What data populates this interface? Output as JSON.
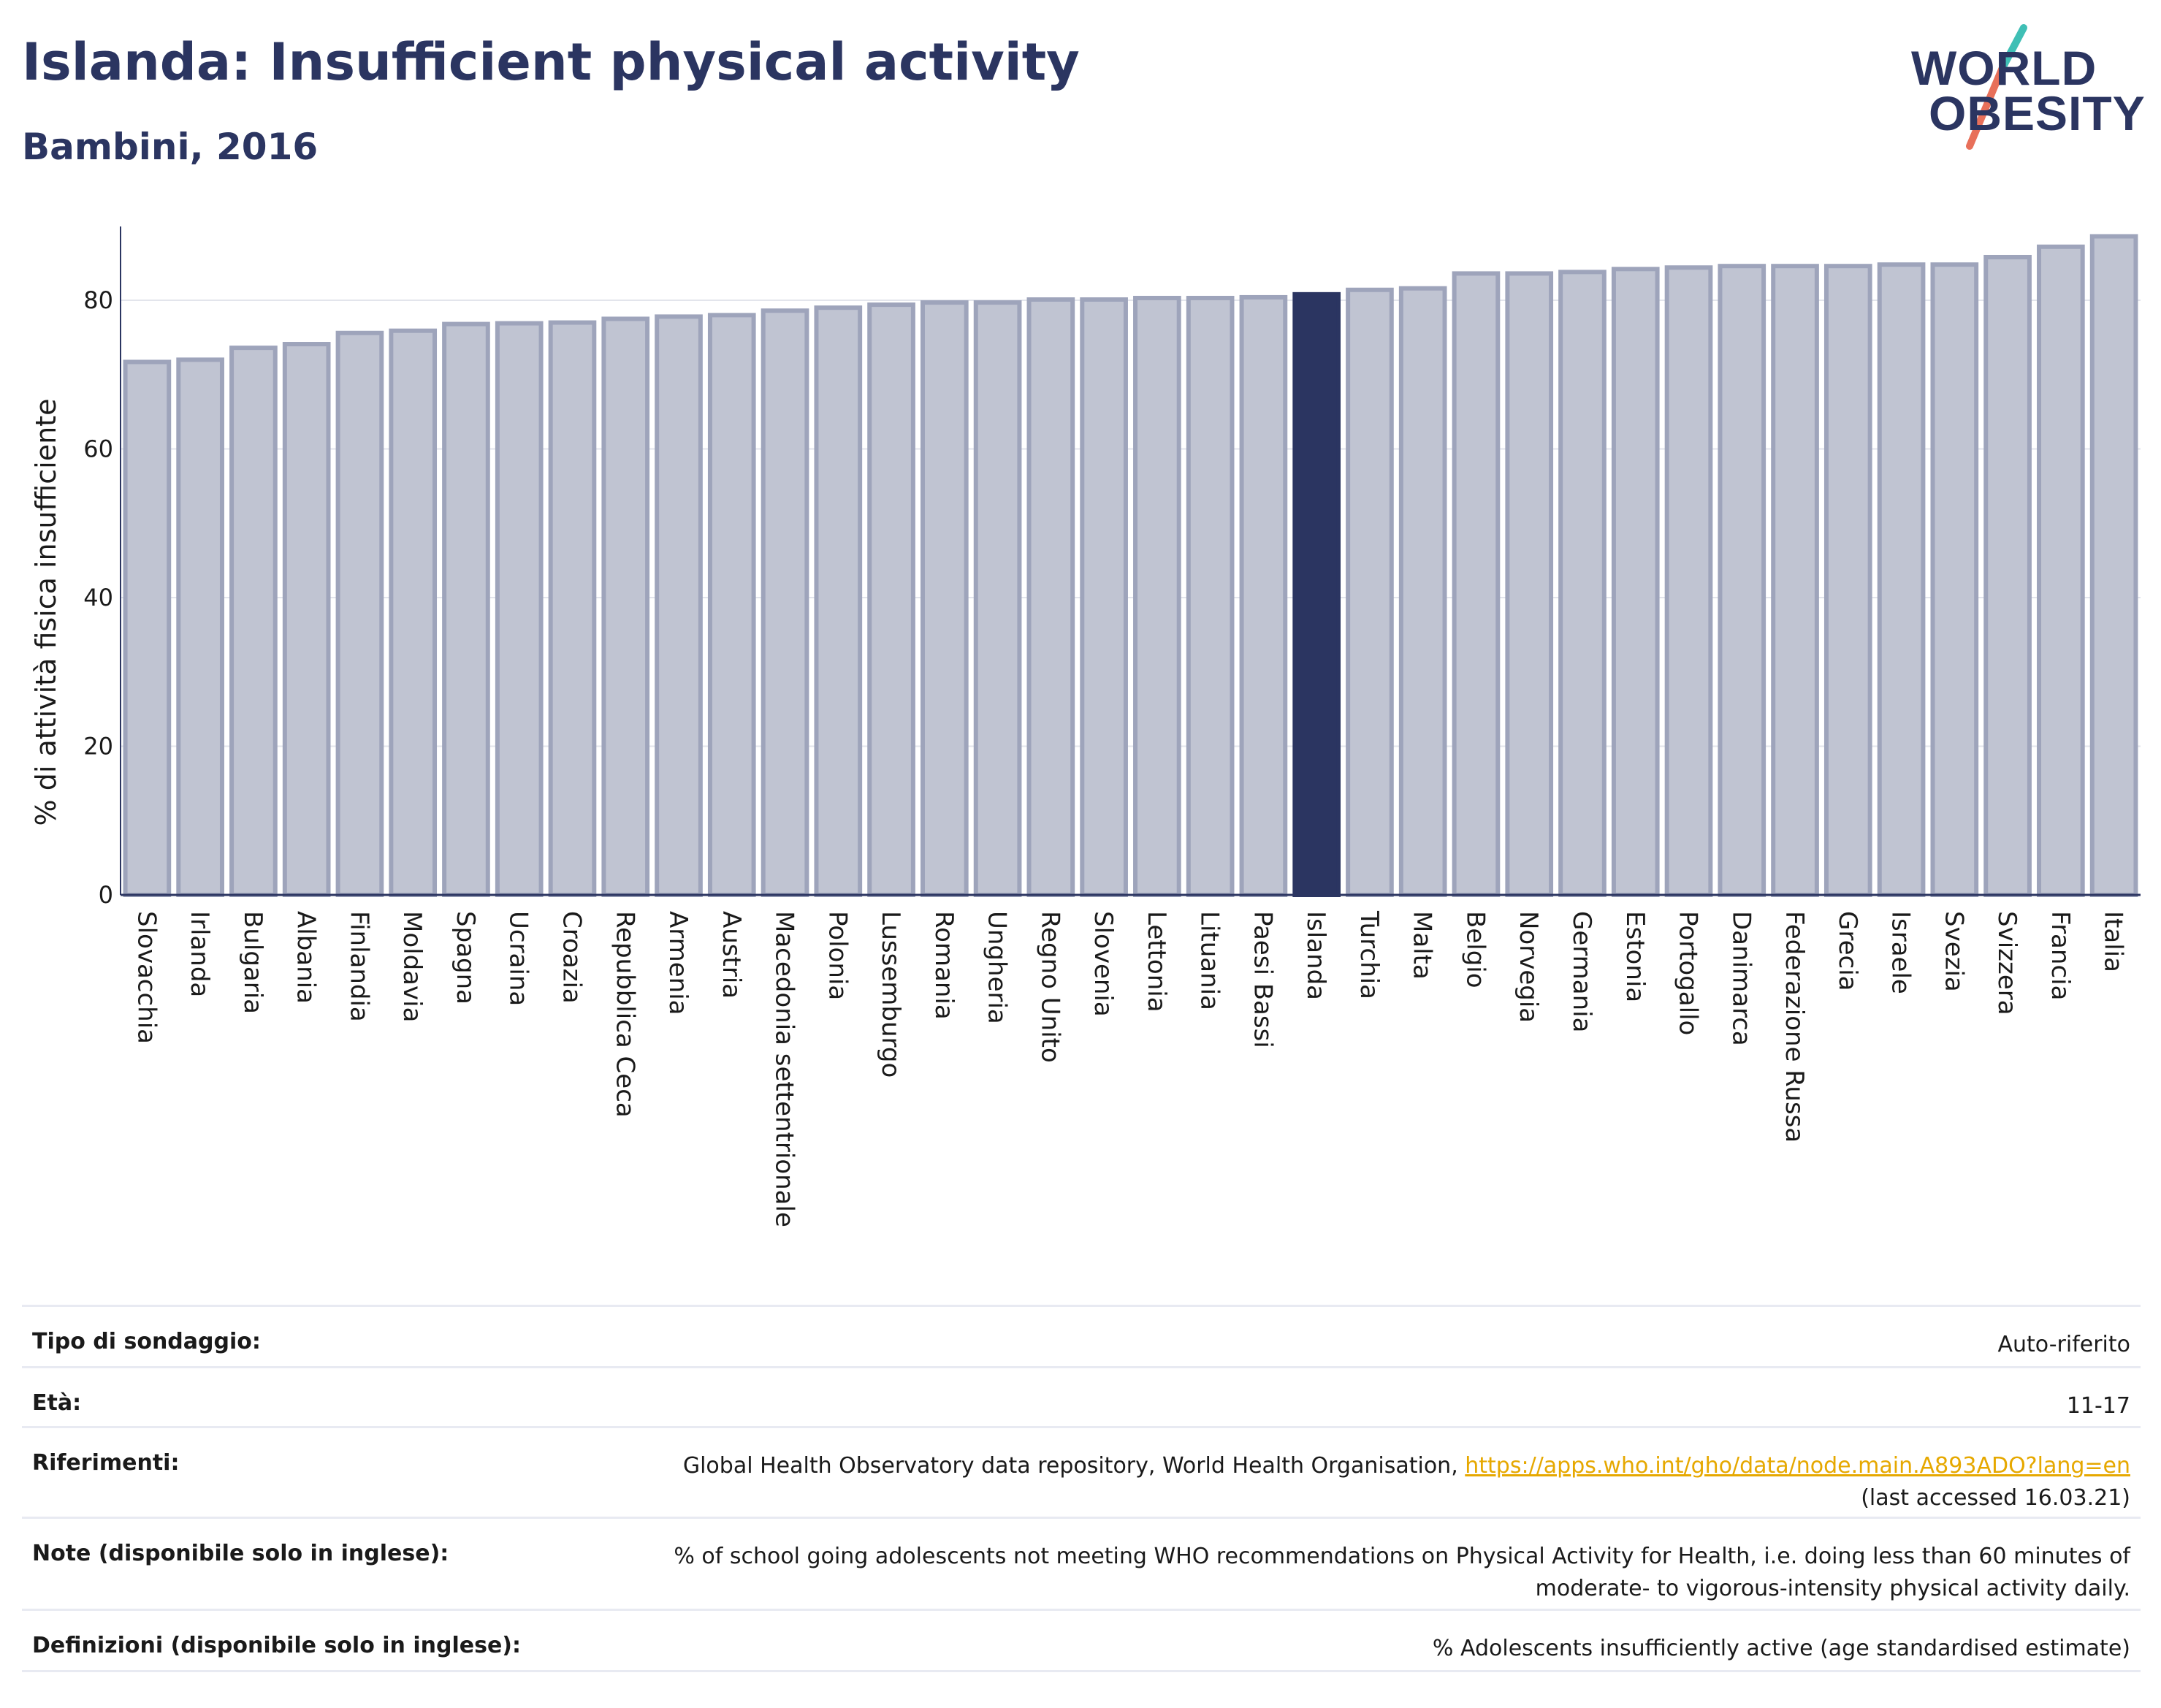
{
  "header": {
    "title": "Islanda: Insufficient physical activity",
    "subtitle": "Bambini, 2016"
  },
  "logo": {
    "line1": "WORLD",
    "line2": "OBESITY",
    "colors": {
      "text": "#2b3561",
      "slash_top": "#3fbfb5",
      "slash_bottom": "#e8705a"
    }
  },
  "colors": {
    "bar_fill": "#c0c4d2",
    "bar_stroke": "#9ea4bb",
    "highlight": "#2b3561",
    "grid": "#e3e5ec",
    "link": "#e6a800"
  },
  "chart_data": {
    "type": "bar",
    "title": "",
    "xlabel": "",
    "ylabel": "% di attività fisica insufficiente",
    "ylim": [
      0,
      90
    ],
    "yticks": [
      0,
      20,
      40,
      60,
      80
    ],
    "grid": true,
    "highlight": "Islanda",
    "categories": [
      "Slovacchia",
      "Irlanda",
      "Bulgaria",
      "Albania",
      "Finlandia",
      "Moldavia",
      "Spagna",
      "Ucraina",
      "Croazia",
      "Repubblica Ceca",
      "Armenia",
      "Austria",
      "Macedonia settentrionale",
      "Polonia",
      "Lussemburgo",
      "Romania",
      "Ungheria",
      "Regno Unito",
      "Slovenia",
      "Lettonia",
      "Lituania",
      "Paesi Bassi",
      "Islanda",
      "Turchia",
      "Malta",
      "Belgio",
      "Norvegia",
      "Germania",
      "Estonia",
      "Portogallo",
      "Danimarca",
      "Federazione Russa",
      "Grecia",
      "Israele",
      "Svezia",
      "Svizzera",
      "Francia",
      "Italia"
    ],
    "values": [
      71.7,
      72.0,
      73.6,
      74.1,
      75.6,
      75.9,
      76.8,
      76.9,
      77.0,
      77.5,
      77.8,
      78.0,
      78.6,
      79.0,
      79.4,
      79.7,
      79.7,
      80.1,
      80.1,
      80.3,
      80.3,
      80.4,
      80.8,
      81.4,
      81.6,
      83.6,
      83.6,
      83.8,
      84.2,
      84.4,
      84.6,
      84.6,
      84.6,
      84.8,
      84.8,
      85.8,
      87.2,
      88.6
    ]
  },
  "info": {
    "rows": [
      {
        "label": "Tipo di sondaggio:",
        "value": "Auto-riferito"
      },
      {
        "label": "Età:",
        "value": "11-17"
      },
      {
        "label": "Riferimenti:",
        "value": "Global Health Observatory data repository, World Health Organisation, ",
        "link": "https://apps.who.int/gho/data/node.main.A893ADO?lang=en",
        "value_after": "(last accessed 16.03.21)"
      },
      {
        "label": "Note (disponibile solo in inglese):",
        "value": "% of school going adolescents not meeting WHO recommendations on Physical Activity for Health, i.e. doing less than 60 minutes of moderate- to vigorous-intensity physical activity daily."
      },
      {
        "label": "Definizioni (disponibile solo in inglese):",
        "value": "% Adolescents insufficiently active (age standardised estimate)"
      }
    ]
  }
}
